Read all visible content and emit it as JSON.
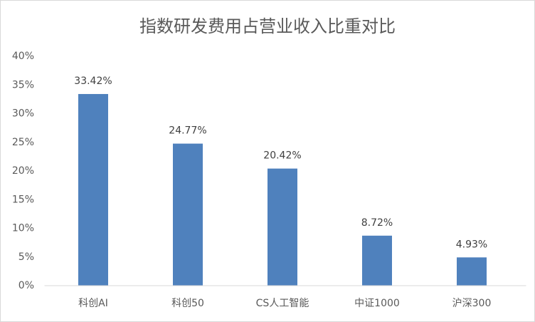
{
  "chart_data": {
    "type": "bar",
    "title": "指数研发费用占营业收入比重对比",
    "categories": [
      "科创AI",
      "科创50",
      "CS人工智能",
      "中证1000",
      "沪深300"
    ],
    "values": [
      33.42,
      24.77,
      20.42,
      8.72,
      4.93
    ],
    "value_labels": [
      "33.42%",
      "24.77%",
      "20.42%",
      "8.72%",
      "4.93%"
    ],
    "color": "#4f81bd",
    "ylim": [
      0,
      40
    ],
    "yticks": [
      {
        "value": 0,
        "label": "0%"
      },
      {
        "value": 5,
        "label": "5%"
      },
      {
        "value": 10,
        "label": "10%"
      },
      {
        "value": 15,
        "label": "15%"
      },
      {
        "value": 20,
        "label": "20%"
      },
      {
        "value": 25,
        "label": "25%"
      },
      {
        "value": 30,
        "label": "30%"
      },
      {
        "value": 35,
        "label": "35%"
      },
      {
        "value": 40,
        "label": "40%"
      }
    ],
    "grid": false
  }
}
